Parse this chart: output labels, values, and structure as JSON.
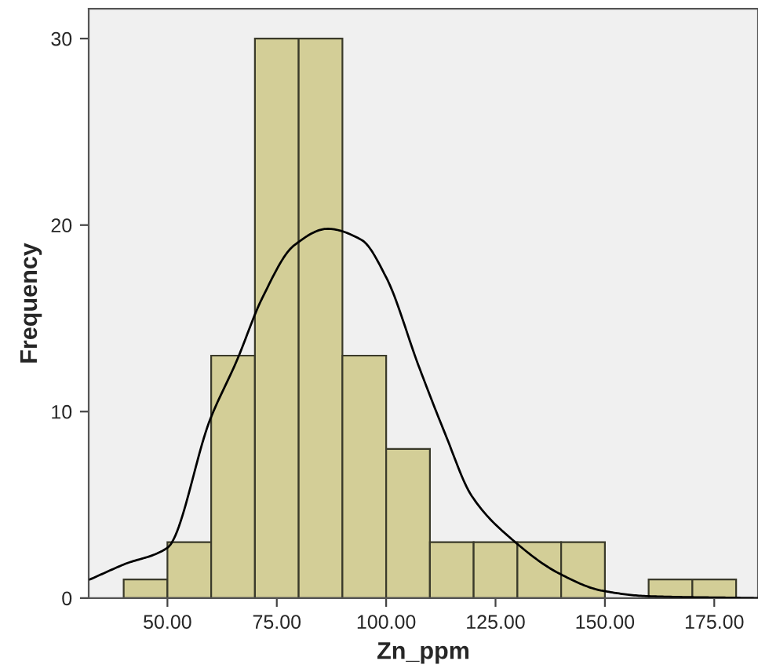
{
  "chart_data": {
    "type": "histogram",
    "xlabel": "Zn_ppm",
    "ylabel": "Frequency",
    "bins": [
      40,
      50,
      60,
      70,
      80,
      90,
      100,
      110,
      120,
      130,
      140,
      150,
      160,
      170,
      180
    ],
    "values": [
      1,
      3,
      13,
      30,
      30,
      13,
      8,
      3,
      3,
      3,
      3,
      0,
      1,
      1
    ],
    "color": "#d3ce97",
    "series": [
      {
        "type": "line",
        "color": "#000000",
        "x": [
          32.3,
          40,
          50,
          59.8,
          65.8,
          71.7,
          78.9,
          86.6,
          94.4,
          100,
          107.5,
          113.5,
          119.5,
          129,
          139.7,
          149.3,
          160,
          185
        ],
        "values": [
          1.0,
          1.8,
          2.7,
          9.6,
          12.7,
          16.1,
          18.9,
          19.8,
          19.2,
          17.2,
          12.4,
          8.8,
          5.5,
          3.1,
          1.3,
          0.4,
          0.1,
          0
        ]
      }
    ],
    "xlim": [
      32,
      185
    ],
    "ylim": [
      0,
      31.6
    ],
    "xticks": [
      {
        "value": 50,
        "label": "50.00"
      },
      {
        "value": 75,
        "label": "75.00"
      },
      {
        "value": 100,
        "label": "100.00"
      },
      {
        "value": 125,
        "label": "125.00"
      },
      {
        "value": 150,
        "label": "150.00"
      },
      {
        "value": 175,
        "label": "175.00"
      }
    ],
    "yticks": [
      0,
      10,
      20,
      30
    ],
    "grid": false
  }
}
